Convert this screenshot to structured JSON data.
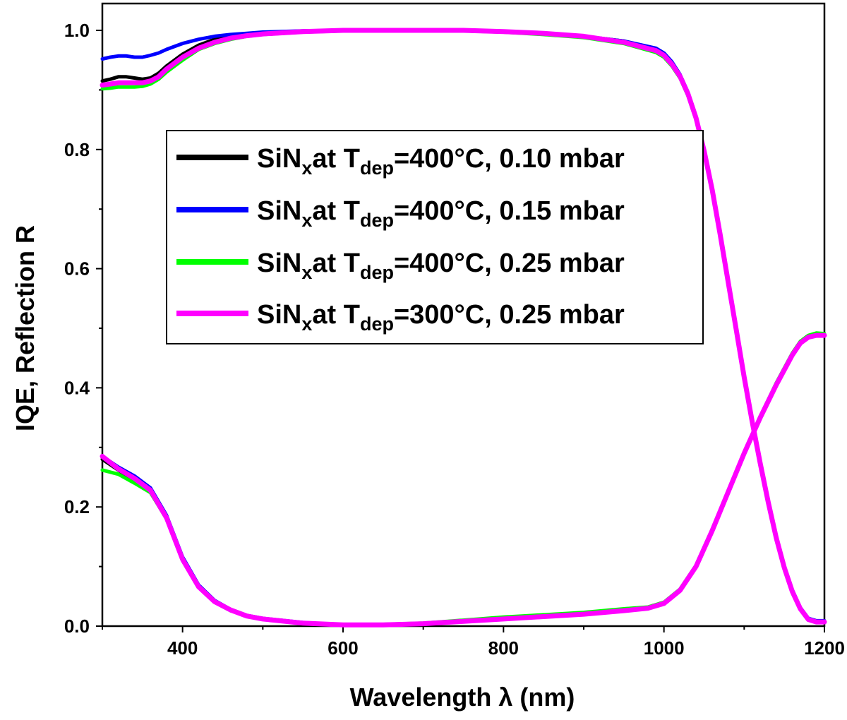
{
  "chart_data": {
    "type": "line",
    "title": "",
    "xlabel": "Wavelength λ (nm)",
    "ylabel": "IQE, Reflection R",
    "xlim": [
      300,
      1200
    ],
    "ylim": [
      0,
      1.05
    ],
    "xticks": [
      "400",
      "600",
      "800",
      "1000",
      "1200"
    ],
    "yticks": [
      "0.0",
      "0.2",
      "0.4",
      "0.6",
      "0.8",
      "1.0"
    ],
    "grid": false,
    "legend_position": "center-left",
    "series": [
      {
        "name": "SiNx at Tdep=400°C, 0.10 mbar",
        "legend": {
          "main": "SiN",
          "sub1": "x",
          "mid": "at T",
          "sub2": "dep",
          "tail": "=400°C, 0.10 mbar"
        },
        "color": "#000000",
        "iqe": {
          "x": [
            300,
            310,
            320,
            330,
            340,
            350,
            360,
            370,
            380,
            400,
            420,
            440,
            460,
            480,
            500,
            550,
            600,
            650,
            700,
            750,
            800,
            850,
            900,
            950,
            990,
            1000,
            1010,
            1020,
            1030,
            1040,
            1050,
            1060,
            1070,
            1080,
            1090,
            1100,
            1110,
            1120,
            1130,
            1140,
            1150,
            1160,
            1170,
            1180,
            1190,
            1200
          ],
          "y": [
            0.915,
            0.918,
            0.922,
            0.922,
            0.92,
            0.918,
            0.92,
            0.928,
            0.94,
            0.96,
            0.975,
            0.985,
            0.99,
            0.993,
            0.995,
            0.998,
            1.0,
            1.0,
            1.0,
            1.0,
            0.998,
            0.995,
            0.99,
            0.982,
            0.968,
            0.96,
            0.945,
            0.925,
            0.895,
            0.855,
            0.8,
            0.735,
            0.66,
            0.58,
            0.5,
            0.42,
            0.345,
            0.275,
            0.21,
            0.15,
            0.1,
            0.06,
            0.03,
            0.012,
            0.008,
            0.008
          ]
        },
        "reflection": {
          "x": [
            300,
            320,
            340,
            360,
            380,
            400,
            420,
            440,
            460,
            480,
            500,
            550,
            600,
            650,
            700,
            750,
            800,
            850,
            900,
            950,
            980,
            1000,
            1020,
            1040,
            1060,
            1080,
            1100,
            1120,
            1140,
            1160,
            1170,
            1180,
            1190,
            1200
          ],
          "y": [
            0.28,
            0.262,
            0.245,
            0.225,
            0.18,
            0.11,
            0.065,
            0.04,
            0.026,
            0.017,
            0.012,
            0.005,
            0.002,
            0.002,
            0.004,
            0.008,
            0.012,
            0.016,
            0.02,
            0.026,
            0.03,
            0.038,
            0.06,
            0.1,
            0.16,
            0.225,
            0.29,
            0.35,
            0.405,
            0.455,
            0.475,
            0.485,
            0.488,
            0.488
          ]
        }
      },
      {
        "name": "SiNx at Tdep=400°C, 0.15 mbar",
        "legend": {
          "main": "SiN",
          "sub1": "x",
          "mid": "at T",
          "sub2": "dep",
          "tail": "=400°C, 0.15 mbar"
        },
        "color": "#0000ff",
        "iqe": {
          "x": [
            300,
            310,
            320,
            330,
            340,
            350,
            360,
            370,
            380,
            400,
            420,
            440,
            460,
            480,
            500,
            550,
            600,
            650,
            700,
            750,
            800,
            850,
            900,
            950,
            990,
            1000,
            1010,
            1020,
            1030,
            1040,
            1050,
            1060,
            1070,
            1080,
            1090,
            1100,
            1110,
            1120,
            1130,
            1140,
            1150,
            1160,
            1170,
            1180,
            1190,
            1200
          ],
          "y": [
            0.952,
            0.955,
            0.957,
            0.957,
            0.955,
            0.955,
            0.958,
            0.962,
            0.968,
            0.978,
            0.985,
            0.99,
            0.993,
            0.995,
            0.997,
            0.999,
            1.0,
            1.0,
            1.0,
            1.0,
            0.998,
            0.995,
            0.99,
            0.982,
            0.97,
            0.962,
            0.947,
            0.926,
            0.896,
            0.856,
            0.801,
            0.736,
            0.661,
            0.581,
            0.501,
            0.421,
            0.346,
            0.276,
            0.211,
            0.151,
            0.101,
            0.061,
            0.031,
            0.013,
            0.009,
            0.009
          ]
        },
        "reflection": {
          "x": [
            300,
            320,
            340,
            360,
            380,
            400,
            420,
            440,
            460,
            480,
            500,
            550,
            600,
            650,
            700,
            750,
            800,
            850,
            900,
            950,
            980,
            1000,
            1020,
            1040,
            1060,
            1080,
            1100,
            1120,
            1140,
            1160,
            1170,
            1180,
            1190,
            1200
          ],
          "y": [
            0.285,
            0.267,
            0.252,
            0.232,
            0.186,
            0.116,
            0.069,
            0.043,
            0.028,
            0.018,
            0.013,
            0.006,
            0.002,
            0.002,
            0.004,
            0.008,
            0.012,
            0.016,
            0.02,
            0.026,
            0.03,
            0.038,
            0.06,
            0.1,
            0.16,
            0.225,
            0.29,
            0.35,
            0.405,
            0.455,
            0.475,
            0.485,
            0.488,
            0.488
          ]
        }
      },
      {
        "name": "SiNx at Tdep=400°C, 0.25 mbar",
        "legend": {
          "main": "SiN",
          "sub1": "x",
          "mid": "at T",
          "sub2": "dep",
          "tail": "=400°C, 0.25 mbar"
        },
        "color": "#00ff00",
        "iqe": {
          "x": [
            300,
            310,
            320,
            330,
            340,
            350,
            360,
            370,
            380,
            400,
            420,
            440,
            460,
            480,
            500,
            550,
            600,
            650,
            700,
            750,
            800,
            850,
            900,
            950,
            990,
            1000,
            1010,
            1020,
            1030,
            1040,
            1050,
            1060,
            1070,
            1080,
            1090,
            1100,
            1110,
            1120,
            1130,
            1140,
            1150,
            1160,
            1170,
            1180,
            1190,
            1200
          ],
          "y": [
            0.902,
            0.903,
            0.905,
            0.905,
            0.905,
            0.906,
            0.91,
            0.918,
            0.93,
            0.95,
            0.968,
            0.978,
            0.985,
            0.99,
            0.993,
            0.997,
            0.999,
            1.0,
            1.0,
            0.999,
            0.997,
            0.993,
            0.988,
            0.978,
            0.963,
            0.955,
            0.94,
            0.92,
            0.89,
            0.85,
            0.795,
            0.73,
            0.655,
            0.575,
            0.495,
            0.415,
            0.34,
            0.27,
            0.205,
            0.145,
            0.095,
            0.056,
            0.028,
            0.011,
            0.007,
            0.007
          ]
        },
        "reflection": {
          "x": [
            300,
            320,
            340,
            360,
            380,
            400,
            420,
            440,
            460,
            480,
            500,
            550,
            600,
            650,
            700,
            750,
            800,
            850,
            900,
            950,
            980,
            1000,
            1020,
            1040,
            1060,
            1080,
            1100,
            1120,
            1140,
            1160,
            1170,
            1180,
            1190,
            1200
          ],
          "y": [
            0.262,
            0.255,
            0.24,
            0.224,
            0.181,
            0.111,
            0.065,
            0.04,
            0.026,
            0.017,
            0.012,
            0.005,
            0.002,
            0.003,
            0.005,
            0.01,
            0.015,
            0.019,
            0.023,
            0.029,
            0.032,
            0.04,
            0.062,
            0.102,
            0.162,
            0.227,
            0.292,
            0.352,
            0.408,
            0.458,
            0.478,
            0.488,
            0.492,
            0.491
          ]
        }
      },
      {
        "name": "SiNx at Tdep=300°C, 0.25 mbar",
        "legend": {
          "main": "SiN",
          "sub1": "x",
          "mid": "at T",
          "sub2": "dep",
          "tail": "=300°C, 0.25 mbar"
        },
        "color": "#ff00ff",
        "iqe": {
          "x": [
            300,
            310,
            320,
            330,
            340,
            350,
            360,
            370,
            380,
            400,
            420,
            440,
            460,
            480,
            500,
            550,
            600,
            650,
            700,
            750,
            800,
            850,
            900,
            950,
            990,
            1000,
            1010,
            1020,
            1030,
            1040,
            1050,
            1060,
            1070,
            1080,
            1090,
            1100,
            1110,
            1120,
            1130,
            1140,
            1150,
            1160,
            1170,
            1180,
            1190,
            1200
          ],
          "y": [
            0.908,
            0.91,
            0.912,
            0.912,
            0.912,
            0.912,
            0.915,
            0.922,
            0.935,
            0.955,
            0.97,
            0.98,
            0.987,
            0.991,
            0.994,
            0.998,
            1.0,
            1.0,
            1.0,
            1.0,
            0.998,
            0.995,
            0.99,
            0.98,
            0.966,
            0.958,
            0.943,
            0.923,
            0.893,
            0.853,
            0.798,
            0.733,
            0.658,
            0.578,
            0.498,
            0.418,
            0.343,
            0.273,
            0.208,
            0.148,
            0.098,
            0.058,
            0.029,
            0.011,
            0.007,
            0.007
          ]
        },
        "reflection": {
          "x": [
            300,
            320,
            340,
            360,
            380,
            400,
            420,
            440,
            460,
            480,
            500,
            550,
            600,
            650,
            700,
            750,
            800,
            850,
            900,
            950,
            980,
            1000,
            1020,
            1040,
            1060,
            1080,
            1100,
            1120,
            1140,
            1160,
            1170,
            1180,
            1190,
            1200
          ],
          "y": [
            0.285,
            0.264,
            0.248,
            0.228,
            0.182,
            0.112,
            0.066,
            0.041,
            0.027,
            0.017,
            0.012,
            0.005,
            0.002,
            0.002,
            0.004,
            0.008,
            0.012,
            0.016,
            0.02,
            0.026,
            0.03,
            0.038,
            0.06,
            0.1,
            0.16,
            0.225,
            0.29,
            0.35,
            0.405,
            0.455,
            0.475,
            0.485,
            0.488,
            0.488
          ]
        }
      }
    ]
  }
}
